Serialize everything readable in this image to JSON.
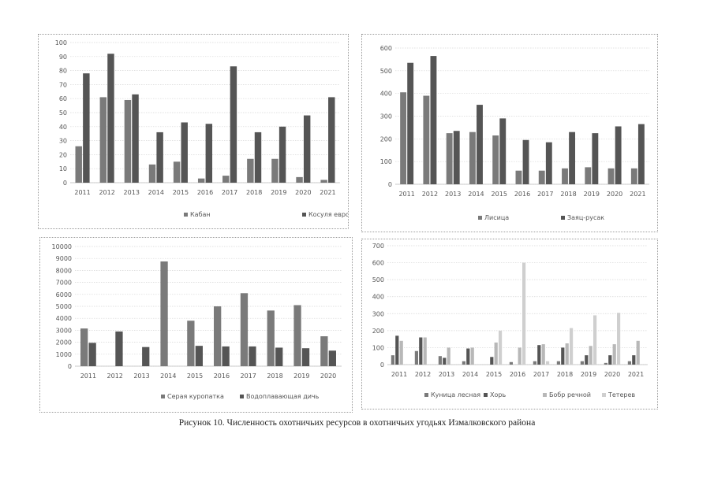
{
  "figure": {
    "caption": "Рисунок 10. Численность охотничьих ресурсов в охотничьих угодьях Измалковского района",
    "colors": [
      "#7a7a7a",
      "#555555",
      "#b8b8b8",
      "#cfcfcf"
    ]
  },
  "chart_data": [
    {
      "type": "bar",
      "title": "",
      "xlabel": "",
      "ylabel": "",
      "ylim": [
        0,
        100
      ],
      "yticks": [
        0,
        10,
        20,
        30,
        40,
        50,
        60,
        70,
        80,
        90,
        100
      ],
      "categories": [
        "2011",
        "2012",
        "2013",
        "2014",
        "2015",
        "2016",
        "2017",
        "2018",
        "2019",
        "2020",
        "2021"
      ],
      "legend_position": "bottom",
      "series": [
        {
          "name": "Кабан",
          "values": [
            26,
            61,
            59,
            13,
            15,
            3,
            5,
            17,
            17,
            4,
            2
          ]
        },
        {
          "name": "Косуля европейская",
          "values": [
            78,
            92,
            63,
            36,
            43,
            42,
            83,
            36,
            40,
            48,
            61
          ]
        }
      ]
    },
    {
      "type": "bar",
      "title": "",
      "xlabel": "",
      "ylabel": "",
      "ylim": [
        0,
        600
      ],
      "yticks": [
        0,
        100,
        200,
        300,
        400,
        500,
        600
      ],
      "categories": [
        "2011",
        "2012",
        "2013",
        "2014",
        "2015",
        "2016",
        "2017",
        "2018",
        "2019",
        "2020",
        "2021"
      ],
      "legend_position": "bottom",
      "series": [
        {
          "name": "Лисица",
          "values": [
            405,
            390,
            225,
            230,
            215,
            60,
            60,
            70,
            75,
            70,
            70
          ]
        },
        {
          "name": "Заяц-русак",
          "values": [
            535,
            565,
            235,
            350,
            290,
            195,
            185,
            230,
            225,
            255,
            265
          ]
        }
      ]
    },
    {
      "type": "bar",
      "title": "",
      "xlabel": "",
      "ylabel": "",
      "ylim": [
        0,
        10000
      ],
      "yticks": [
        0,
        1000,
        2000,
        3000,
        4000,
        5000,
        6000,
        7000,
        8000,
        9000,
        10000
      ],
      "categories": [
        "2011",
        "2012",
        "2013",
        "2014",
        "2015",
        "2016",
        "2017",
        "2018",
        "2019",
        "2020"
      ],
      "legend_position": "bottom",
      "series": [
        {
          "name": "Серая куропатка",
          "values": [
            3150,
            0,
            0,
            8750,
            3800,
            5000,
            6100,
            4650,
            5100,
            2500
          ]
        },
        {
          "name": "Водоплавающая дичь",
          "values": [
            1950,
            2900,
            1600,
            0,
            1700,
            1650,
            1650,
            1550,
            1500,
            1300
          ]
        }
      ]
    },
    {
      "type": "bar",
      "title": "",
      "xlabel": "",
      "ylabel": "",
      "ylim": [
        0,
        700
      ],
      "yticks": [
        0,
        100,
        200,
        300,
        400,
        500,
        600,
        700
      ],
      "categories": [
        "2011",
        "2012",
        "2013",
        "2014",
        "2015",
        "2016",
        "2017",
        "2018",
        "2019",
        "2020",
        "2021"
      ],
      "legend_position": "bottom",
      "series": [
        {
          "name": "Куница лесная",
          "values": [
            55,
            80,
            50,
            20,
            0,
            15,
            20,
            20,
            20,
            10,
            20
          ]
        },
        {
          "name": "Хорь",
          "values": [
            170,
            160,
            40,
            95,
            45,
            0,
            115,
            100,
            55,
            55,
            55
          ]
        },
        {
          "name": "Бобр речной",
          "values": [
            140,
            160,
            100,
            100,
            130,
            100,
            120,
            125,
            110,
            120,
            140
          ]
        },
        {
          "name": "Тетерев",
          "values": [
            0,
            0,
            0,
            0,
            200,
            600,
            20,
            215,
            290,
            305,
            0
          ]
        }
      ]
    }
  ]
}
